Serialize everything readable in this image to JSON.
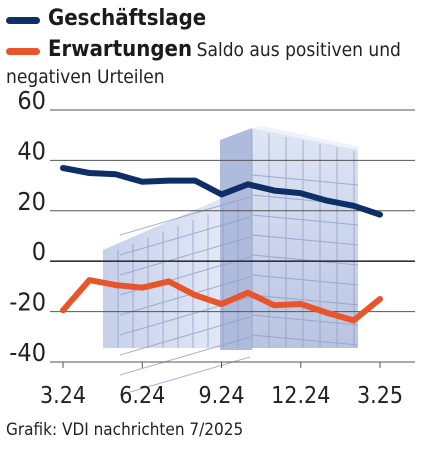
{
  "legend": {
    "series1_name": "Geschäftslage",
    "series2_name": "Erwartungen",
    "note_line1": "Saldo aus positiven und",
    "note_line2": "negativen Urteilen"
  },
  "source": "Grafik: VDI nachrichten 7/2025",
  "chart_data": {
    "type": "line",
    "ylim": [
      -40,
      60
    ],
    "yticks": [
      60,
      40,
      20,
      0,
      -20,
      -40
    ],
    "ytick_labels": [
      "60",
      "40",
      "20",
      "0",
      "-20",
      "-40"
    ],
    "x_ticks": [
      "3.24",
      "6.24",
      "9.24",
      "12.24",
      "3.25"
    ],
    "x": [
      "3.24",
      "4.24",
      "5.24",
      "6.24",
      "7.24",
      "8.24",
      "9.24",
      "10.24",
      "11.24",
      "12.24",
      "1.25",
      "2.25",
      "3.25"
    ],
    "series": [
      {
        "name": "Geschäftslage",
        "color": "#0e2f66",
        "values": [
          37,
          35,
          34.5,
          31.5,
          32,
          32,
          26.5,
          30.5,
          28,
          27,
          24,
          22,
          18.5
        ]
      },
      {
        "name": "Erwartungen",
        "color": "#e8552a",
        "values": [
          -19.5,
          -7.5,
          -9.5,
          -10.5,
          -8,
          -13.5,
          -17,
          -12.5,
          -17.5,
          -17,
          -20.5,
          -23.5,
          -15
        ]
      }
    ]
  }
}
